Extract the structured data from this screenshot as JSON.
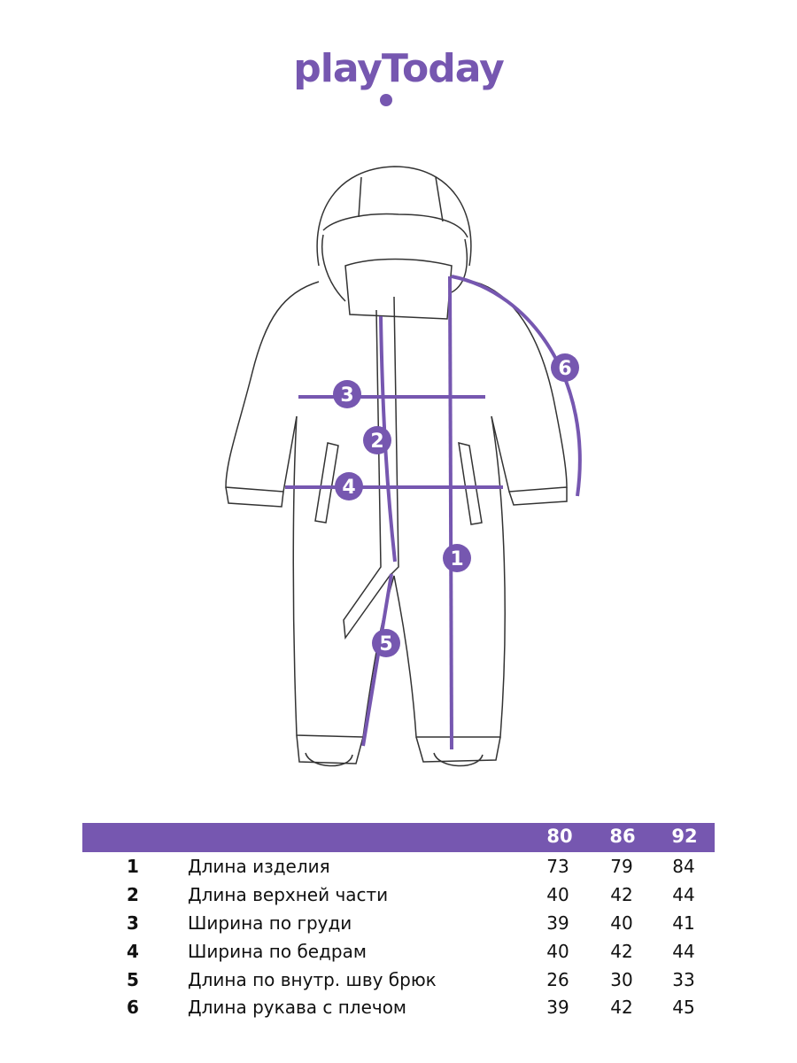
{
  "brand": {
    "logo_text": "playToday",
    "color": "#7657b0"
  },
  "diagram": {
    "markers": [
      "1",
      "2",
      "3",
      "4",
      "5",
      "6"
    ]
  },
  "size_table": {
    "sizes": [
      "80",
      "86",
      "92"
    ],
    "rows": [
      {
        "num": "1",
        "label": "Длина изделия",
        "values": [
          "73",
          "79",
          "84"
        ]
      },
      {
        "num": "2",
        "label": "Длина верхней части",
        "values": [
          "40",
          "42",
          "44"
        ]
      },
      {
        "num": "3",
        "label": "Ширина по груди",
        "values": [
          "39",
          "40",
          "41"
        ]
      },
      {
        "num": "4",
        "label": "Ширина по бедрам",
        "values": [
          "40",
          "42",
          "44"
        ]
      },
      {
        "num": "5",
        "label": "Длина по внутр. шву брюк",
        "values": [
          "26",
          "30",
          "33"
        ]
      },
      {
        "num": "6",
        "label": "Длина рукава с плечом",
        "values": [
          "39",
          "42",
          "45"
        ]
      }
    ]
  }
}
